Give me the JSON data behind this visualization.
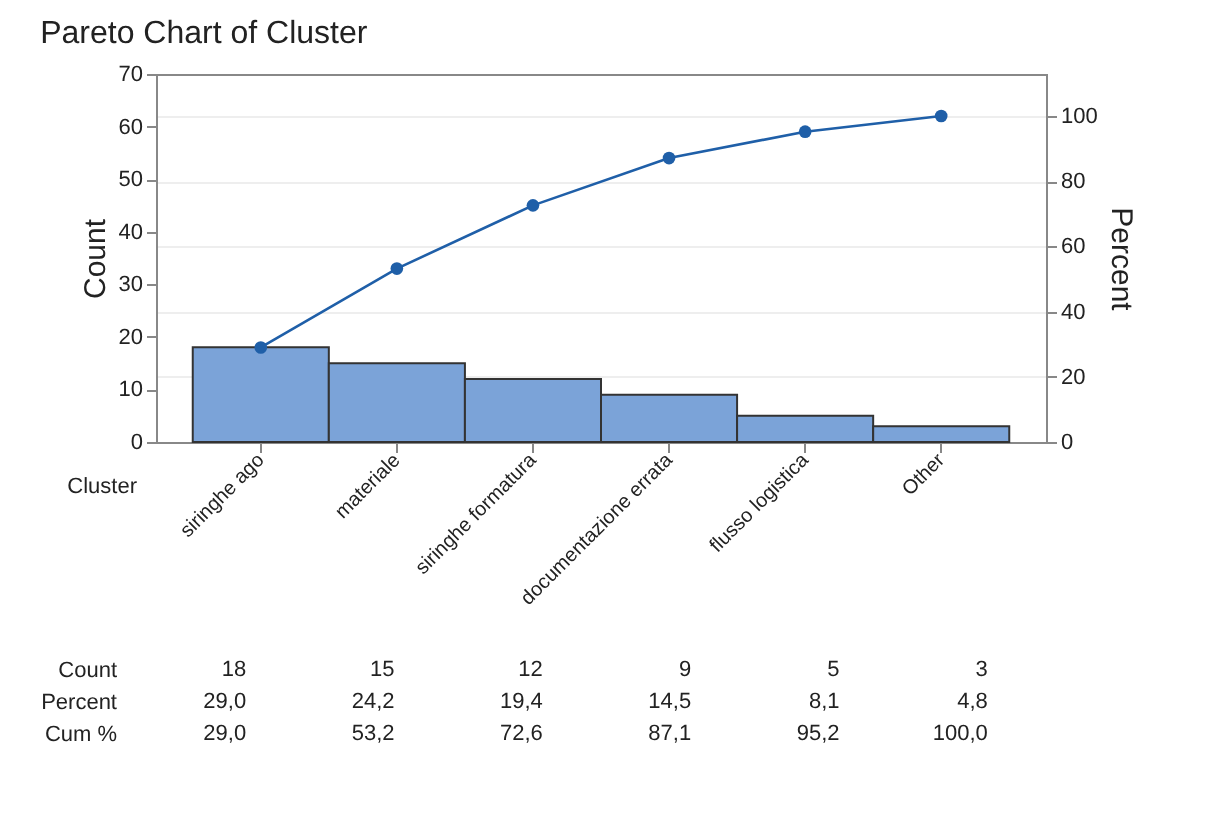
{
  "chart_data": {
    "type": "bar",
    "title": "Pareto Chart of Cluster",
    "xlabel": "Cluster",
    "ylabel": "Count",
    "y2label": "Percent",
    "categories": [
      "siringhe ago",
      "materiale",
      "siringhe formatura",
      "documentazione errata",
      "flusso logistica",
      "Other"
    ],
    "series": [
      {
        "color": "#7ba3d8",
        "values": [
          18,
          15,
          12,
          9,
          5,
          3
        ]
      },
      {
        "type": "line",
        "axis": "y2",
        "color": "#1f5fa8",
        "values": [
          29.0,
          53.2,
          72.6,
          87.1,
          95.2,
          100.0
        ],
        "value_labels": [
          "29,0",
          "53,2",
          "72,6",
          "87,1",
          "95,2",
          "100,0"
        ]
      }
    ],
    "annotations": [
      "Count",
      "Percent",
      "Cum %",
      "29,0",
      "24,2",
      "19,4",
      "14,5",
      "8,1",
      "4,8"
    ],
    "data_labels": true,
    "ylim": [
      0,
      70
    ],
    "yticks": [
      0,
      10,
      20,
      30,
      40,
      50,
      60,
      70
    ],
    "y2lim": [
      0,
      112.9
    ],
    "y2ticks": [
      0,
      20,
      40,
      60,
      80,
      100
    ],
    "grid": "y2",
    "marker": "circle",
    "line_style": "solid"
  }
}
